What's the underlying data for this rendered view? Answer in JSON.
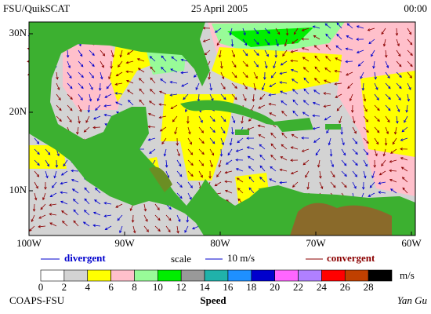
{
  "header": {
    "left": "FSU/QuikSCAT",
    "center": "25 April 2005",
    "right": "00:00"
  },
  "lat_labels": [
    "30N",
    "20N",
    "10N"
  ],
  "lon_labels": [
    "100W",
    "90W",
    "80W",
    "70W",
    "60W"
  ],
  "legend": {
    "divergent": "divergent",
    "scale": "scale",
    "scale_value": "10 m/s",
    "convergent": "convergent"
  },
  "colorbar": {
    "labels": [
      0,
      2,
      4,
      6,
      8,
      10,
      12,
      14,
      16,
      18,
      20,
      22,
      24,
      26,
      28
    ],
    "unit": "m/s",
    "title": "Speed",
    "colors": [
      "#ffffff",
      "#d3d3d3",
      "#ffff00",
      "#ffc0cb",
      "#98fb98",
      "#00ee00",
      "#999999",
      "#20b2aa",
      "#1e90ff",
      "#0000cd",
      "#ff66ff",
      "#b080ff",
      "#ff0000",
      "#c04000",
      "#000000"
    ]
  },
  "footer": {
    "left": "COAPS-FSU",
    "right": "Yan Gu"
  }
}
